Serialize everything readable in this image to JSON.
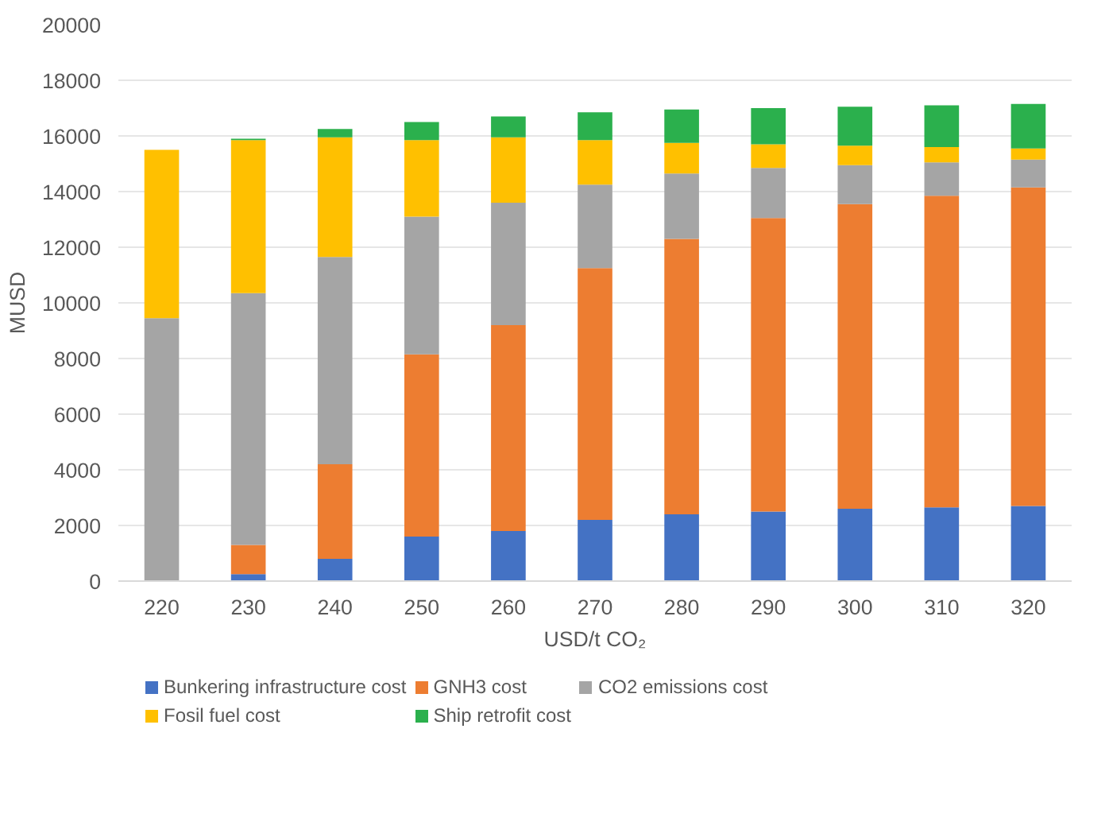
{
  "chart_data": {
    "type": "bar",
    "stacked": true,
    "xlabel": "USD/t CO₂",
    "ylabel": "MUSD",
    "categories": [
      "220",
      "230",
      "240",
      "250",
      "260",
      "270",
      "280",
      "290",
      "300",
      "310",
      "320"
    ],
    "series": [
      {
        "name": "Bunkering infrastructure cost",
        "color": "#4472c4",
        "values": [
          0,
          250,
          800,
          1600,
          1800,
          2200,
          2400,
          2500,
          2600,
          2650,
          2700
        ]
      },
      {
        "name": "GNH3 cost",
        "color": "#ed7d31",
        "values": [
          0,
          1050,
          3400,
          6550,
          7400,
          9050,
          9900,
          10550,
          10950,
          11200,
          11450
        ]
      },
      {
        "name": "CO2 emissions cost",
        "color": "#a5a5a5",
        "values": [
          9450,
          9050,
          7450,
          4950,
          4400,
          3000,
          2350,
          1800,
          1400,
          1200,
          1000
        ]
      },
      {
        "name": "Fosil fuel cost",
        "color": "#ffc000",
        "values": [
          6050,
          5500,
          4300,
          2750,
          2350,
          1600,
          1100,
          850,
          700,
          550,
          400
        ]
      },
      {
        "name": "Ship retrofit cost",
        "color": "#2bb04d",
        "values": [
          0,
          50,
          300,
          650,
          750,
          1000,
          1200,
          1300,
          1400,
          1500,
          1600
        ]
      }
    ],
    "ylim": [
      0,
      20000
    ],
    "yticks": [
      0,
      2000,
      4000,
      6000,
      8000,
      10000,
      12000,
      14000,
      16000,
      18000,
      20000
    ],
    "grid": "y",
    "legend": "bottom"
  }
}
